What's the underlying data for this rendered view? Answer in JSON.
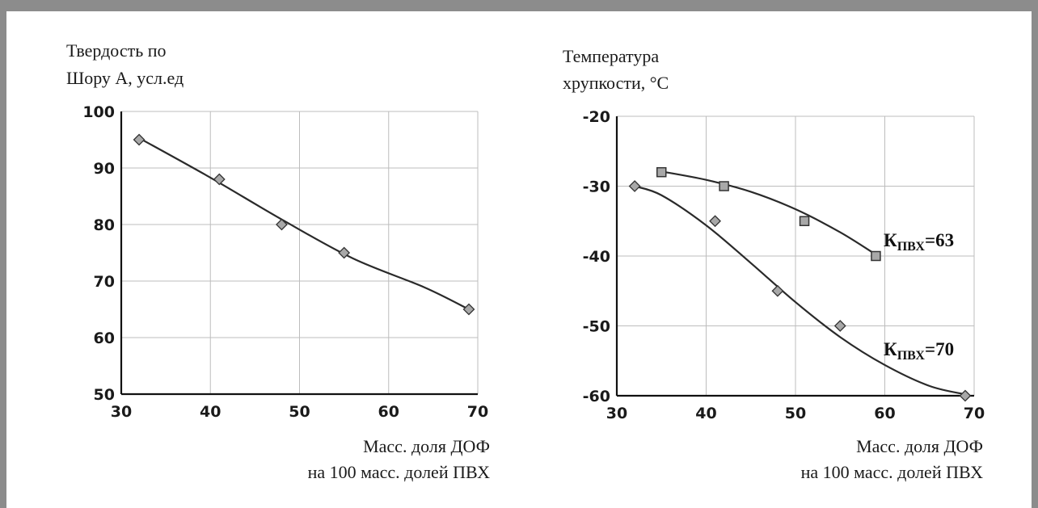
{
  "chart_data": [
    {
      "type": "line",
      "ylabel_lines": [
        "Твердость по",
        "Шору А, усл.ед"
      ],
      "xlabel_lines": [
        "Масс. доля ДОФ",
        "на 100 масс. долей ПВХ"
      ],
      "xlim": [
        30,
        70
      ],
      "ylim": [
        50,
        100
      ],
      "xticks": [
        30,
        40,
        50,
        60,
        70
      ],
      "yticks": [
        50,
        60,
        70,
        80,
        90,
        100
      ],
      "grid": true,
      "series": [
        {
          "marker": "diamond",
          "x": [
            32,
            41,
            48,
            55,
            69
          ],
          "y": [
            95,
            88,
            80,
            75,
            65
          ],
          "fit": [
            [
              32,
              95.3
            ],
            [
              40,
              88.3
            ],
            [
              48,
              80.9
            ],
            [
              56,
              74.0
            ],
            [
              64,
              68.9
            ],
            [
              69,
              65.0
            ]
          ]
        }
      ]
    },
    {
      "type": "line",
      "ylabel_lines": [
        "Температура",
        "хрупкости, °С"
      ],
      "xlabel_lines": [
        "Масс. доля ДОФ",
        "на 100 масс. долей ПВХ"
      ],
      "xlim": [
        30,
        70
      ],
      "ylim": [
        -60,
        -20
      ],
      "xticks": [
        30,
        40,
        50,
        60,
        70
      ],
      "yticks": [
        -20,
        -30,
        -40,
        -50,
        -60
      ],
      "grid": true,
      "series": [
        {
          "name_main": "К",
          "name_sub": "ПВХ",
          "name_tail": "=63",
          "marker": "square",
          "x": [
            35,
            42,
            51,
            59
          ],
          "y": [
            -28,
            -30,
            -35,
            -40
          ],
          "fit": [
            [
              35,
              -27.9
            ],
            [
              40,
              -29.1
            ],
            [
              45,
              -30.8
            ],
            [
              50,
              -33.3
            ],
            [
              55,
              -36.6
            ],
            [
              59,
              -39.8
            ]
          ]
        },
        {
          "name_main": "К",
          "name_sub": "ПВХ",
          "name_tail": "=70",
          "marker": "diamond",
          "x": [
            32,
            41,
            48,
            55,
            69
          ],
          "y": [
            -30,
            -35,
            -45,
            -50,
            -60
          ],
          "fit": [
            [
              32,
              -30.0
            ],
            [
              35,
              -31.3
            ],
            [
              40,
              -35.6
            ],
            [
              45,
              -41.0
            ],
            [
              50,
              -46.6
            ],
            [
              55,
              -51.6
            ],
            [
              60,
              -55.6
            ],
            [
              65,
              -58.6
            ],
            [
              69,
              -59.8
            ]
          ]
        }
      ]
    }
  ]
}
